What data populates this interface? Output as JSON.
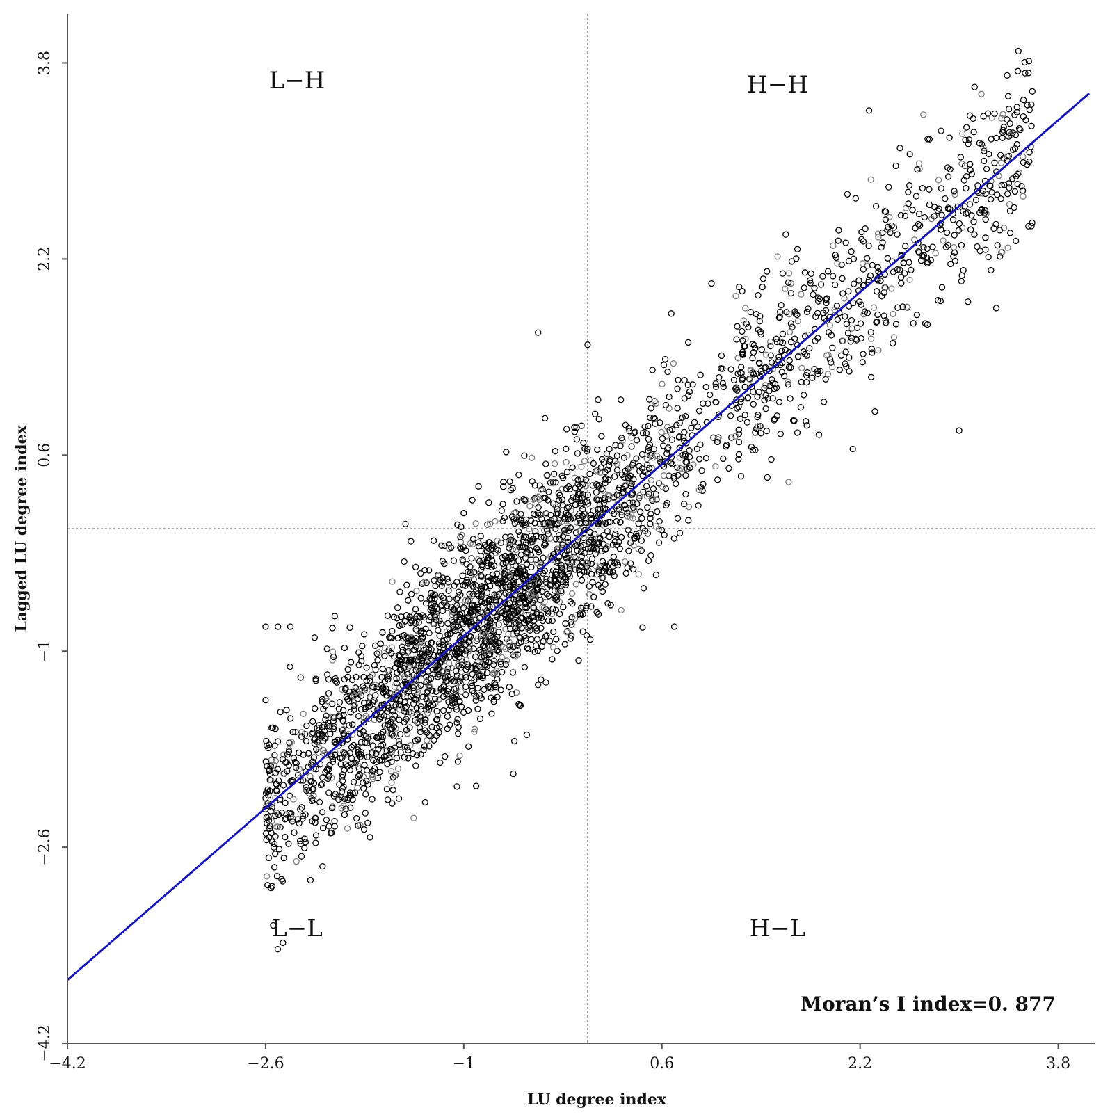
{
  "chart_data": {
    "type": "scatter",
    "xlabel": "LU degree index",
    "ylabel": "Lagged LU degree index",
    "xlim": [
      -4.2,
      4.1
    ],
    "ylim": [
      -4.2,
      4.2
    ],
    "x_ticks": [
      "−4.2",
      "−2.6",
      "−1",
      "0.6",
      "2.2",
      "3.8"
    ],
    "y_ticks": [
      "−4.2",
      "−2.6",
      "−1",
      "0.6",
      "2.2",
      "3.8"
    ],
    "reference_lines": {
      "x": 0,
      "y": 0,
      "style": "dotted"
    },
    "quadrant_labels": {
      "top_left": "L−H",
      "top_right": "H−H",
      "bottom_left": "L−L",
      "bottom_right": "H−L"
    },
    "annotation": "Moran’s I index=0. 877",
    "regression_line": {
      "slope": 0.877,
      "intercept": 0,
      "color": "#1515c8"
    },
    "marker_colors": [
      "#000000",
      "#7a7a7a"
    ],
    "points_spec": {
      "count": 3200,
      "x_range": [
        -2.6,
        3.6
      ],
      "slope": 0.877,
      "spread": 0.38,
      "seed": 877
    },
    "notable_points": [
      {
        "x": -2.6,
        "y": -0.8
      },
      {
        "x": -2.5,
        "y": -0.8
      },
      {
        "x": -2.4,
        "y": -0.8
      },
      {
        "x": -2.6,
        "y": -2.2
      },
      {
        "x": -2.6,
        "y": -1.4
      },
      {
        "x": -0.4,
        "y": 1.6
      },
      {
        "x": 0.0,
        "y": 1.5
      },
      {
        "x": 0.7,
        "y": -0.8
      },
      {
        "x": 1.6,
        "y": 2.4
      },
      {
        "x": 3.4,
        "y": 3.2
      },
      {
        "x": 3.2,
        "y": 3.0
      },
      {
        "x": 3.0,
        "y": 0.8
      },
      {
        "x": -0.9,
        "y": -2.1
      },
      {
        "x": -0.6,
        "y": -2.0
      },
      {
        "x": -2.2,
        "y": -2.4
      },
      {
        "x": 3.3,
        "y": 1.8
      },
      {
        "x": 2.5,
        "y": 2.4
      },
      {
        "x": 1.0,
        "y": 2.0
      }
    ]
  }
}
